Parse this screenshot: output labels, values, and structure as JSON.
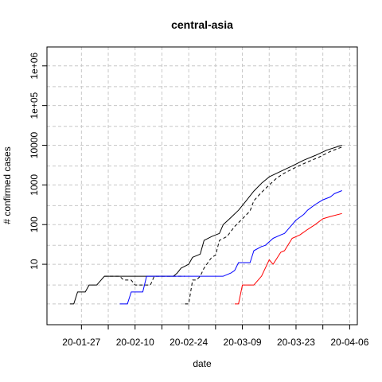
{
  "chart_data": {
    "type": "line",
    "title": "central-asia",
    "xlabel": "date",
    "ylabel": "# confirmed cases",
    "y_scale": "log",
    "ylim": [
      0.3,
      3000000
    ],
    "y_ticks": [
      10,
      100,
      1000,
      10000,
      100000,
      1000000
    ],
    "y_tick_labels": [
      "10",
      "100",
      "1000",
      "10000",
      "1e+05",
      "1e+06"
    ],
    "xlim": [
      "2020-01-18",
      "2020-04-08"
    ],
    "x_ticks": [
      "2020-01-27",
      "2020-02-10",
      "2020-02-24",
      "2020-03-09",
      "2020-03-23",
      "2020-04-06"
    ],
    "x_tick_labels": [
      "20-01-27",
      "20-02-10",
      "20-02-24",
      "20-03-09",
      "20-03-23",
      "20-04-06"
    ],
    "x_minor_ticks": [
      "2020-02-03",
      "2020-02-17",
      "2020-03-02",
      "2020-03-16",
      "2020-03-30"
    ],
    "grid": true,
    "series": [
      {
        "color": "#000000",
        "dash": "solid",
        "points": [
          [
            "2020-01-24",
            1
          ],
          [
            "2020-01-25",
            1
          ],
          [
            "2020-01-26",
            2
          ],
          [
            "2020-01-28",
            2
          ],
          [
            "2020-01-29",
            3
          ],
          [
            "2020-01-31",
            3
          ],
          [
            "2020-02-02",
            5
          ],
          [
            "2020-02-20",
            5
          ],
          [
            "2020-02-21",
            6
          ],
          [
            "2020-02-22",
            8
          ],
          [
            "2020-02-24",
            10
          ],
          [
            "2020-02-25",
            15
          ],
          [
            "2020-02-27",
            18
          ],
          [
            "2020-02-28",
            40
          ],
          [
            "2020-03-01",
            50
          ],
          [
            "2020-03-03",
            60
          ],
          [
            "2020-03-04",
            100
          ],
          [
            "2020-03-06",
            150
          ],
          [
            "2020-03-08",
            230
          ],
          [
            "2020-03-10",
            400
          ],
          [
            "2020-03-12",
            700
          ],
          [
            "2020-03-14",
            1100
          ],
          [
            "2020-03-16",
            1600
          ],
          [
            "2020-03-19",
            2200
          ],
          [
            "2020-03-22",
            3000
          ],
          [
            "2020-03-25",
            4200
          ],
          [
            "2020-03-28",
            5500
          ],
          [
            "2020-03-31",
            7500
          ],
          [
            "2020-04-04",
            10000
          ]
        ]
      },
      {
        "color": "#000000",
        "dash": "dashed",
        "points": [
          [
            "2020-02-02",
            5
          ],
          [
            "2020-02-06",
            5
          ],
          [
            "2020-02-07",
            4
          ],
          [
            "2020-02-09",
            4
          ],
          [
            "2020-02-10",
            3
          ],
          [
            "2020-02-14",
            3
          ],
          [
            "2020-02-15",
            5
          ],
          [
            "2020-02-23",
            5
          ]
        ]
      },
      {
        "color": "#000000",
        "dash": "dashed",
        "points": [
          [
            "2020-02-23",
            1
          ],
          [
            "2020-02-24",
            1
          ],
          [
            "2020-02-25",
            4
          ],
          [
            "2020-02-26",
            4
          ],
          [
            "2020-02-27",
            5
          ],
          [
            "2020-02-28",
            8
          ],
          [
            "2020-03-01",
            15
          ],
          [
            "2020-03-02",
            17
          ],
          [
            "2020-03-03",
            40
          ],
          [
            "2020-03-05",
            50
          ],
          [
            "2020-03-07",
            90
          ],
          [
            "2020-03-09",
            140
          ],
          [
            "2020-03-11",
            220
          ],
          [
            "2020-03-12",
            400
          ],
          [
            "2020-03-14",
            650
          ],
          [
            "2020-03-16",
            1000
          ],
          [
            "2020-03-18",
            1500
          ],
          [
            "2020-03-20",
            2000
          ],
          [
            "2020-03-23",
            2800
          ],
          [
            "2020-03-26",
            3800
          ],
          [
            "2020-03-29",
            5000
          ],
          [
            "2020-04-01",
            7000
          ],
          [
            "2020-04-04",
            9000
          ]
        ]
      },
      {
        "color": "#0000ff",
        "dash": "solid",
        "points": [
          [
            "2020-02-06",
            1
          ],
          [
            "2020-02-08",
            1
          ],
          [
            "2020-02-09",
            2
          ],
          [
            "2020-02-12",
            2
          ],
          [
            "2020-02-13",
            5
          ],
          [
            "2020-03-01",
            5
          ],
          [
            "2020-03-04",
            5
          ],
          [
            "2020-03-06",
            6
          ],
          [
            "2020-03-07",
            7
          ],
          [
            "2020-03-08",
            11
          ],
          [
            "2020-03-11",
            11
          ],
          [
            "2020-03-12",
            22
          ],
          [
            "2020-03-14",
            28
          ],
          [
            "2020-03-15",
            30
          ],
          [
            "2020-03-17",
            45
          ],
          [
            "2020-03-19",
            55
          ],
          [
            "2020-03-20",
            60
          ],
          [
            "2020-03-22",
            100
          ],
          [
            "2020-03-23",
            130
          ],
          [
            "2020-03-25",
            180
          ],
          [
            "2020-03-26",
            230
          ],
          [
            "2020-03-28",
            320
          ],
          [
            "2020-03-30",
            420
          ],
          [
            "2020-04-01",
            500
          ],
          [
            "2020-04-02",
            600
          ],
          [
            "2020-04-04",
            720
          ]
        ]
      },
      {
        "color": "#ff0000",
        "dash": "solid",
        "points": [
          [
            "2020-03-07",
            1
          ],
          [
            "2020-03-08",
            1
          ],
          [
            "2020-03-09",
            3
          ],
          [
            "2020-03-12",
            3
          ],
          [
            "2020-03-14",
            5
          ],
          [
            "2020-03-16",
            13
          ],
          [
            "2020-03-17",
            10
          ],
          [
            "2020-03-19",
            20
          ],
          [
            "2020-03-20",
            22
          ],
          [
            "2020-03-22",
            45
          ],
          [
            "2020-03-24",
            55
          ],
          [
            "2020-03-26",
            75
          ],
          [
            "2020-03-28",
            100
          ],
          [
            "2020-03-30",
            140
          ],
          [
            "2020-04-01",
            160
          ],
          [
            "2020-04-04",
            190
          ]
        ]
      }
    ]
  }
}
